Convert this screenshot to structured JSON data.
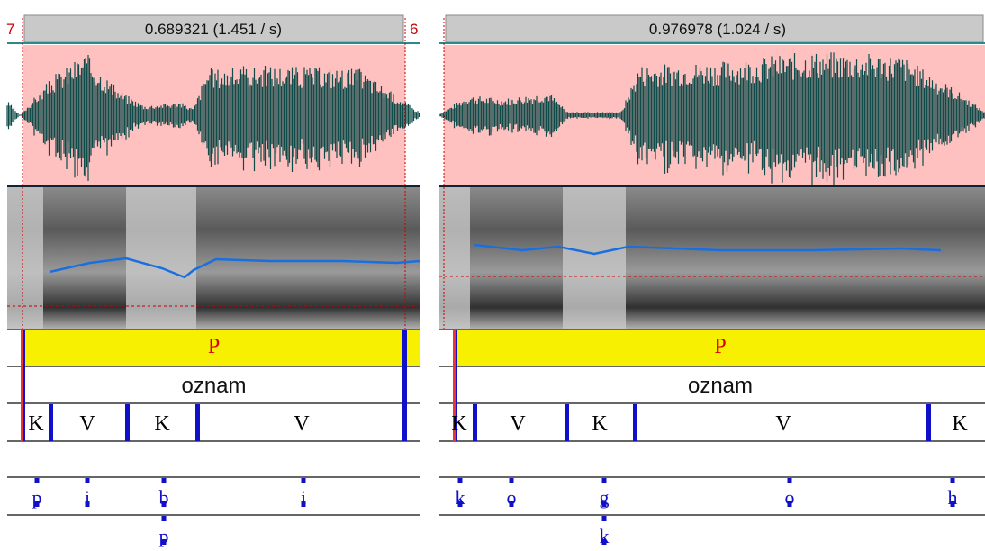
{
  "left": {
    "edge_left": "7",
    "selection": "0.689321 (1.451 / s)",
    "edge_right": "6",
    "tier1": [
      "P"
    ],
    "tier2": [
      "oznam"
    ],
    "tier3": [
      "K",
      "V",
      "K",
      "V"
    ],
    "tier5": [
      "p",
      "i",
      "b",
      "i"
    ],
    "tier6": [
      "p"
    ]
  },
  "right": {
    "selection": "0.976978 (1.024 / s)",
    "tier1": [
      "P"
    ],
    "tier2": [
      "oznam"
    ],
    "tier3": [
      "K",
      "V",
      "K",
      "V",
      "K"
    ],
    "tier5": [
      "k",
      "o",
      "g",
      "o",
      "h"
    ],
    "tier6": [
      "k"
    ]
  }
}
